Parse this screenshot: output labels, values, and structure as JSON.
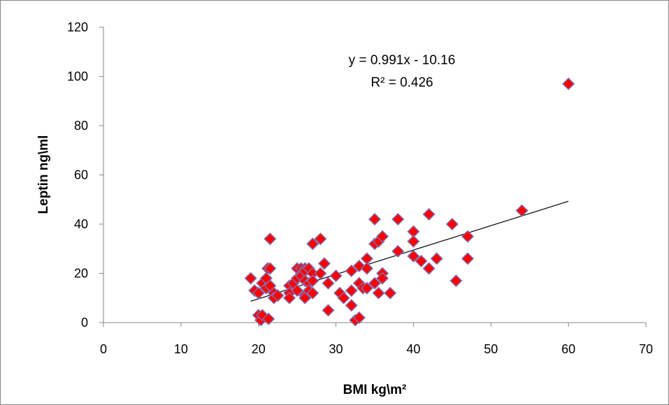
{
  "chart_data": {
    "type": "scatter",
    "title": "",
    "xlabel": "BMI kg\\m²",
    "ylabel": "Leptin  ng\\ml",
    "xlim": [
      0,
      70
    ],
    "ylim": [
      0,
      120
    ],
    "x_ticks": [
      "0",
      "10",
      "20",
      "30",
      "40",
      "50",
      "60",
      "70"
    ],
    "y_ticks": [
      "0",
      "20",
      "40",
      "60",
      "80",
      "100",
      "120"
    ],
    "grid": false,
    "legend": "none",
    "marker": "diamond",
    "marker_color": "#ff0000",
    "marker_edge_color": "#7f6fb0",
    "trendline": {
      "type": "linear",
      "slope": 0.991,
      "intercept": -10.16,
      "x_range": [
        19,
        60
      ],
      "color": "#000000"
    },
    "annotations": [
      "y = 0.991x - 10.16",
      "R² = 0.426"
    ],
    "series": [
      {
        "points": [
          [
            19,
            18
          ],
          [
            19.5,
            13
          ],
          [
            20,
            12
          ],
          [
            20,
            3
          ],
          [
            20.3,
            1
          ],
          [
            20.5,
            16
          ],
          [
            20.5,
            3
          ],
          [
            21,
            18
          ],
          [
            21,
            14
          ],
          [
            21.2,
            22
          ],
          [
            21.3,
            1.5
          ],
          [
            21.5,
            34
          ],
          [
            21.5,
            22
          ],
          [
            21.5,
            15
          ],
          [
            22,
            12
          ],
          [
            22,
            10
          ],
          [
            22.5,
            11
          ],
          [
            24,
            15
          ],
          [
            24,
            12
          ],
          [
            24,
            10
          ],
          [
            24.5,
            16
          ],
          [
            25,
            22
          ],
          [
            25,
            18
          ],
          [
            25,
            13
          ],
          [
            25.5,
            22
          ],
          [
            25.5,
            19
          ],
          [
            26,
            22
          ],
          [
            26,
            21
          ],
          [
            26,
            17
          ],
          [
            26,
            11
          ],
          [
            26,
            10
          ],
          [
            26.5,
            22
          ],
          [
            26.5,
            16
          ],
          [
            26.5,
            13
          ],
          [
            27,
            32
          ],
          [
            27,
            20
          ],
          [
            27,
            17
          ],
          [
            27,
            12
          ],
          [
            28,
            34
          ],
          [
            28,
            20
          ],
          [
            28.5,
            24
          ],
          [
            29,
            16
          ],
          [
            29,
            5
          ],
          [
            30,
            19
          ],
          [
            30.5,
            12
          ],
          [
            31,
            10
          ],
          [
            32,
            21
          ],
          [
            32,
            13
          ],
          [
            32,
            7
          ],
          [
            32.5,
            1
          ],
          [
            33,
            23
          ],
          [
            33,
            16
          ],
          [
            33,
            2
          ],
          [
            33.5,
            14
          ],
          [
            34,
            26
          ],
          [
            34,
            22
          ],
          [
            34,
            14
          ],
          [
            35,
            42
          ],
          [
            35,
            32
          ],
          [
            35,
            16
          ],
          [
            35.5,
            33
          ],
          [
            35.5,
            12
          ],
          [
            36,
            35
          ],
          [
            36,
            20
          ],
          [
            36,
            18
          ],
          [
            37,
            12
          ],
          [
            38,
            42
          ],
          [
            38,
            29
          ],
          [
            40,
            37
          ],
          [
            40,
            33
          ],
          [
            40,
            27
          ],
          [
            41,
            25
          ],
          [
            42,
            44
          ],
          [
            42,
            22
          ],
          [
            43,
            26
          ],
          [
            45,
            40
          ],
          [
            45.5,
            17
          ],
          [
            47,
            35
          ],
          [
            47,
            26
          ],
          [
            54,
            45.5
          ],
          [
            60,
            97
          ]
        ]
      }
    ]
  }
}
